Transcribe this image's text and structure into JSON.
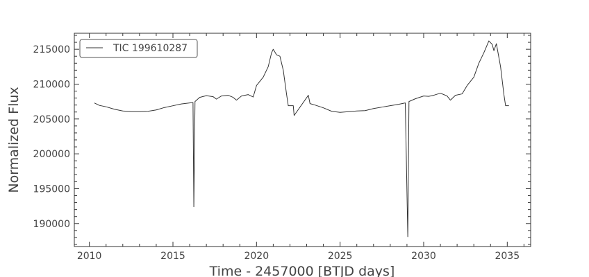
{
  "chart_data": {
    "type": "line",
    "title": "",
    "xlabel": "Time - 2457000 [BTJD days]",
    "ylabel": "Normalized Flux",
    "xlim": [
      2009.1,
      2036.4
    ],
    "ylim": [
      186700,
      217300
    ],
    "xticks": [
      2010,
      2015,
      2020,
      2025,
      2030,
      2035
    ],
    "xtick_labels": [
      "2010",
      "2015",
      "2020",
      "2025",
      "2030",
      "2035"
    ],
    "yticks": [
      190000,
      195000,
      200000,
      205000,
      210000,
      215000
    ],
    "ytick_labels": [
      "190000",
      "195000",
      "200000",
      "205000",
      "210000",
      "215000"
    ],
    "grid": false,
    "legend_position": "top-left",
    "line_color": "#333333",
    "series": [
      {
        "name": "TIC 199610287",
        "points": [
          [
            2010.3,
            207300
          ],
          [
            2010.6,
            206950
          ],
          [
            2011.0,
            206750
          ],
          [
            2011.5,
            206400
          ],
          [
            2012.0,
            206150
          ],
          [
            2012.5,
            206050
          ],
          [
            2013.0,
            206050
          ],
          [
            2013.5,
            206100
          ],
          [
            2014.0,
            206300
          ],
          [
            2014.5,
            206650
          ],
          [
            2015.0,
            206900
          ],
          [
            2015.5,
            207150
          ],
          [
            2016.0,
            207300
          ],
          [
            2016.2,
            207350
          ],
          [
            2016.25,
            192400
          ],
          [
            2016.32,
            207500
          ],
          [
            2016.6,
            208100
          ],
          [
            2017.0,
            208350
          ],
          [
            2017.4,
            208200
          ],
          [
            2017.6,
            207850
          ],
          [
            2017.9,
            208300
          ],
          [
            2018.3,
            208400
          ],
          [
            2018.6,
            208100
          ],
          [
            2018.8,
            207700
          ],
          [
            2019.1,
            208300
          ],
          [
            2019.5,
            208500
          ],
          [
            2019.8,
            208150
          ],
          [
            2020.0,
            209800
          ],
          [
            2020.4,
            211000
          ],
          [
            2020.7,
            212500
          ],
          [
            2020.9,
            214500
          ],
          [
            2021.0,
            215000
          ],
          [
            2021.2,
            214200
          ],
          [
            2021.4,
            214000
          ],
          [
            2021.6,
            212000
          ],
          [
            2021.8,
            208500
          ],
          [
            2021.9,
            206900
          ],
          [
            2022.2,
            206900
          ],
          [
            2022.25,
            205500
          ],
          [
            2023.1,
            208400
          ],
          [
            2023.2,
            207200
          ],
          [
            2023.5,
            207000
          ],
          [
            2024.0,
            206600
          ],
          [
            2024.5,
            206100
          ],
          [
            2025.0,
            205950
          ],
          [
            2025.5,
            206050
          ],
          [
            2026.0,
            206150
          ],
          [
            2026.5,
            206200
          ],
          [
            2027.0,
            206500
          ],
          [
            2027.5,
            206700
          ],
          [
            2028.0,
            206900
          ],
          [
            2028.5,
            207100
          ],
          [
            2028.9,
            207300
          ],
          [
            2029.05,
            188100
          ],
          [
            2029.12,
            207500
          ],
          [
            2029.5,
            207900
          ],
          [
            2030.0,
            208300
          ],
          [
            2030.3,
            208250
          ],
          [
            2030.6,
            208400
          ],
          [
            2031.0,
            208700
          ],
          [
            2031.4,
            208300
          ],
          [
            2031.6,
            207700
          ],
          [
            2031.9,
            208400
          ],
          [
            2032.3,
            208600
          ],
          [
            2032.6,
            209800
          ],
          [
            2033.0,
            211000
          ],
          [
            2033.3,
            213000
          ],
          [
            2033.6,
            214500
          ],
          [
            2033.9,
            216200
          ],
          [
            2034.1,
            215700
          ],
          [
            2034.2,
            214800
          ],
          [
            2034.35,
            215800
          ],
          [
            2034.6,
            212500
          ],
          [
            2034.8,
            208500
          ],
          [
            2034.9,
            206900
          ],
          [
            2035.1,
            206900
          ]
        ]
      }
    ]
  }
}
